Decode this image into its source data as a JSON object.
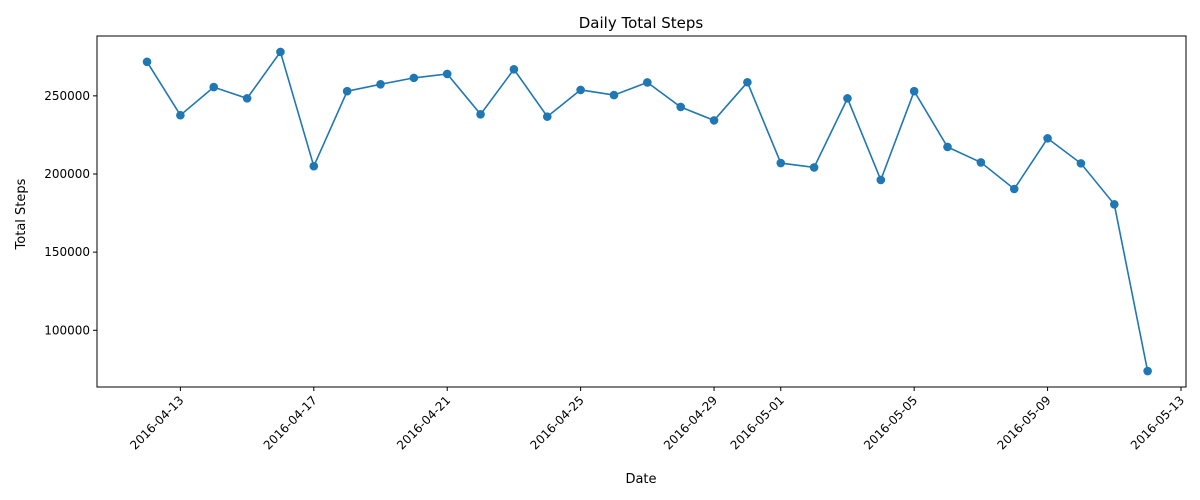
{
  "chart_data": {
    "type": "line",
    "title": "Daily Total Steps",
    "xlabel": "Date",
    "ylabel": "Total Steps",
    "x": [
      "2016-04-12",
      "2016-04-13",
      "2016-04-14",
      "2016-04-15",
      "2016-04-16",
      "2016-04-17",
      "2016-04-18",
      "2016-04-19",
      "2016-04-20",
      "2016-04-21",
      "2016-04-22",
      "2016-04-23",
      "2016-04-24",
      "2016-04-25",
      "2016-04-26",
      "2016-04-27",
      "2016-04-28",
      "2016-04-29",
      "2016-04-30",
      "2016-05-01",
      "2016-05-02",
      "2016-05-03",
      "2016-05-04",
      "2016-05-05",
      "2016-05-06",
      "2016-05-07",
      "2016-05-08",
      "2016-05-09",
      "2016-05-10",
      "2016-05-11",
      "2016-05-12"
    ],
    "series": [
      {
        "values": [
          271800,
          237600,
          255600,
          248400,
          278100,
          205000,
          253000,
          257400,
          261500,
          264000,
          238200,
          267000,
          236700,
          253800,
          250500,
          258600,
          242900,
          234300,
          258700,
          207000,
          204200,
          248400,
          196200,
          253000,
          217300,
          207400,
          190400,
          222800,
          206800,
          180600,
          73900
        ],
        "color": "#1f77b4"
      }
    ],
    "x_ticks": [
      "2016-04-13",
      "2016-04-17",
      "2016-04-21",
      "2016-04-25",
      "2016-04-29",
      "2016-05-01",
      "2016-05-05",
      "2016-05-09",
      "2016-05-13"
    ],
    "y_ticks": [
      100000,
      150000,
      200000,
      250000
    ],
    "xlim": [
      "2016-04-10.5",
      "2016-05-13.5"
    ],
    "ylim": [
      63700,
      288300
    ],
    "grid": false,
    "legend": "none"
  }
}
